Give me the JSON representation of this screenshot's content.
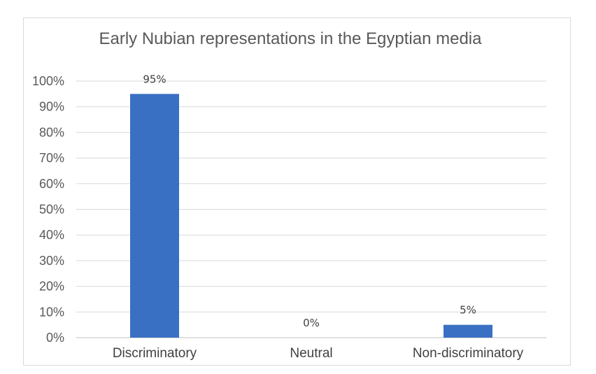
{
  "chart_data": {
    "type": "bar",
    "title": "Early Nubian representations in the Egyptian media",
    "xlabel": "",
    "ylabel": "",
    "categories": [
      "Discriminatory",
      "Neutral",
      "Non-discriminatory"
    ],
    "values": [
      95,
      0,
      5
    ],
    "data_labels": [
      "95%",
      "0%",
      "5%"
    ],
    "ylim": [
      0,
      100
    ],
    "y_ticks": [
      0,
      10,
      20,
      30,
      40,
      50,
      60,
      70,
      80,
      90,
      100
    ],
    "y_tick_labels": [
      "0%",
      "10%",
      "20%",
      "30%",
      "40%",
      "50%",
      "60%",
      "70%",
      "80%",
      "90%",
      "100%"
    ],
    "grid": true,
    "legend": "none",
    "colors": {
      "bar": "#3a70c3",
      "grid": "#d9d9d9",
      "text": "#595959"
    }
  }
}
